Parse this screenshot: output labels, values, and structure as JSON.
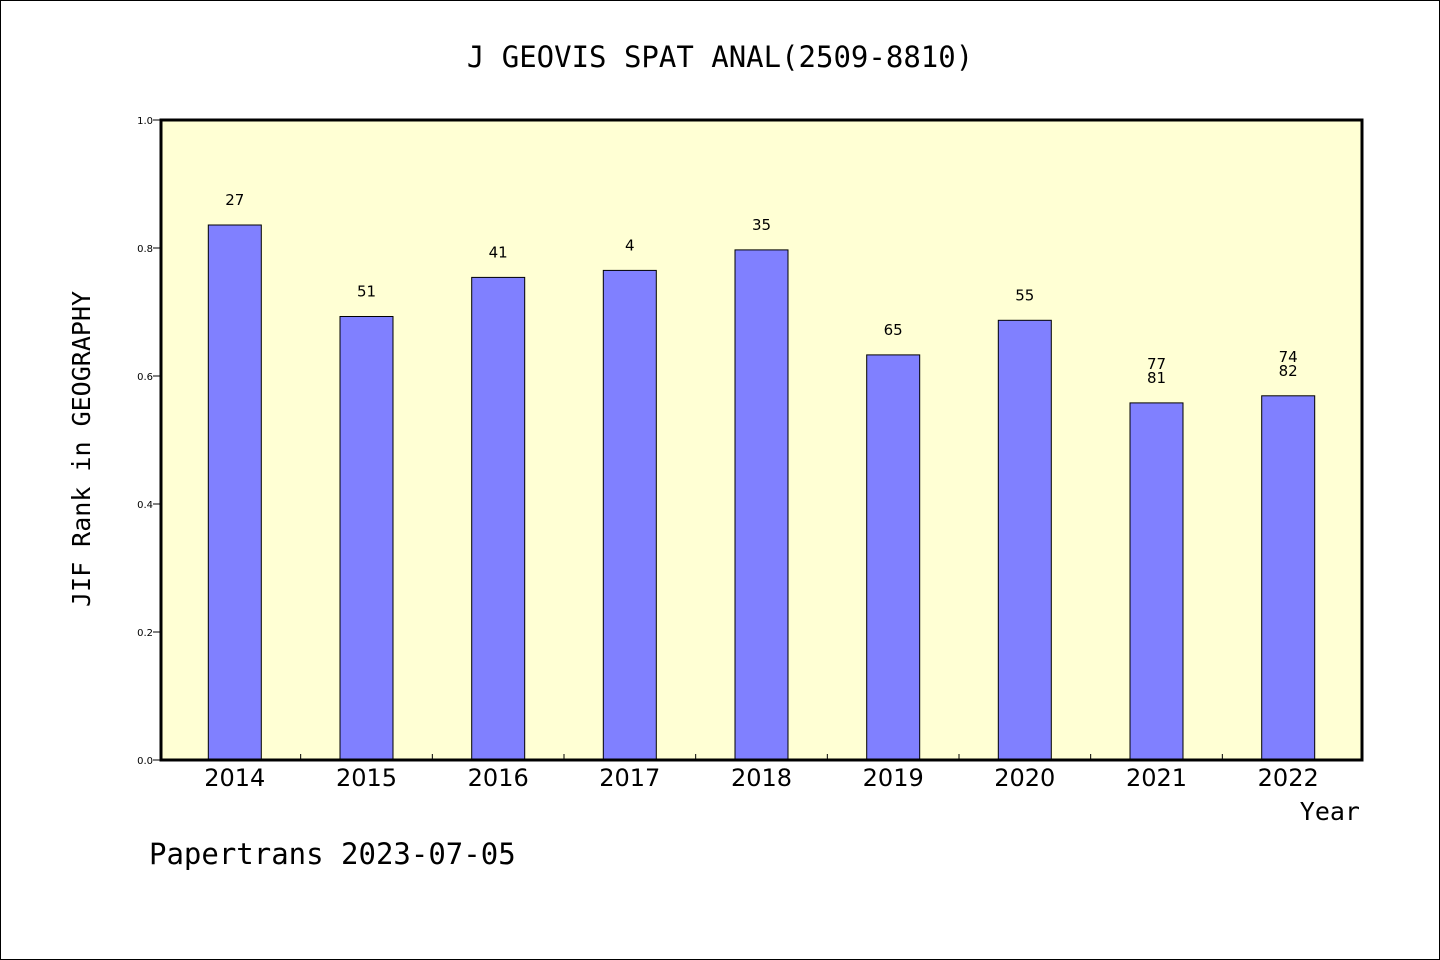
{
  "chart_data": {
    "type": "bar",
    "title": "J GEOVIS SPAT ANAL(2509-8810)",
    "xlabel": "Year",
    "ylabel": "JIF Rank in GEOGRAPHY",
    "ylim": [
      0,
      1.0
    ],
    "yticks": [
      "0.0",
      "0.2",
      "0.4",
      "0.6",
      "0.8",
      "1.0"
    ],
    "categories": [
      "2014",
      "2015",
      "2016",
      "2017",
      "2018",
      "2019",
      "2020",
      "2021",
      "2022"
    ],
    "values": [
      0.836,
      0.693,
      0.754,
      0.765,
      0.797,
      0.633,
      0.687,
      0.558,
      0.569
    ],
    "labels": [
      [
        "27"
      ],
      [
        "51"
      ],
      [
        "41"
      ],
      [
        "4"
      ],
      [
        "35"
      ],
      [
        "65"
      ],
      [
        "55"
      ],
      [
        "77",
        "81"
      ],
      [
        "74",
        "82"
      ]
    ],
    "bar_color": "#8080ff",
    "plot_background": "#ffffd4",
    "grid": false,
    "legend": "none"
  },
  "footer": {
    "text": "Papertrans 2023-07-05"
  }
}
